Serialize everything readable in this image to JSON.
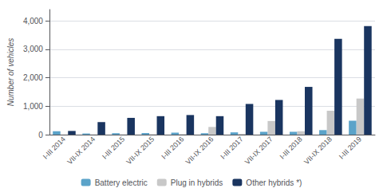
{
  "chart_data": {
    "type": "bar",
    "y_label": "Number of vehicles",
    "categories": [
      "I-III 2014",
      "VII-IX 2014",
      "I-III 2015",
      "VII-IX 2015",
      "I-III 2016",
      "VII-IX 2016",
      "I-III 2017",
      "VII-IX 2017",
      "I-III 2018",
      "VII-IX 2018",
      "I-III 2019"
    ],
    "series": [
      {
        "name": "Battery electric",
        "color": "#5ba3c9",
        "values": [
          120,
          40,
          50,
          55,
          70,
          50,
          80,
          100,
          100,
          160,
          490
        ]
      },
      {
        "name": "Plug in hybrids",
        "color": "#c8c8c8",
        "values": [
          5,
          10,
          10,
          15,
          20,
          270,
          30,
          480,
          120,
          840,
          1270
        ]
      },
      {
        "name": "Other hybrids *)",
        "color": "#1a3560",
        "values": [
          130,
          440,
          590,
          650,
          690,
          650,
          1080,
          1220,
          1680,
          3370,
          3820
        ]
      }
    ],
    "ylim": [
      0,
      4400
    ],
    "yticks": [
      0,
      {
        "value": 1000,
        "label": "1,000"
      },
      {
        "value": 2000,
        "label": "2,000"
      },
      {
        "value": 3000,
        "label": "3,000"
      },
      {
        "value": 4000,
        "label": "4,000"
      }
    ],
    "grid": true,
    "legend": "bottom"
  }
}
